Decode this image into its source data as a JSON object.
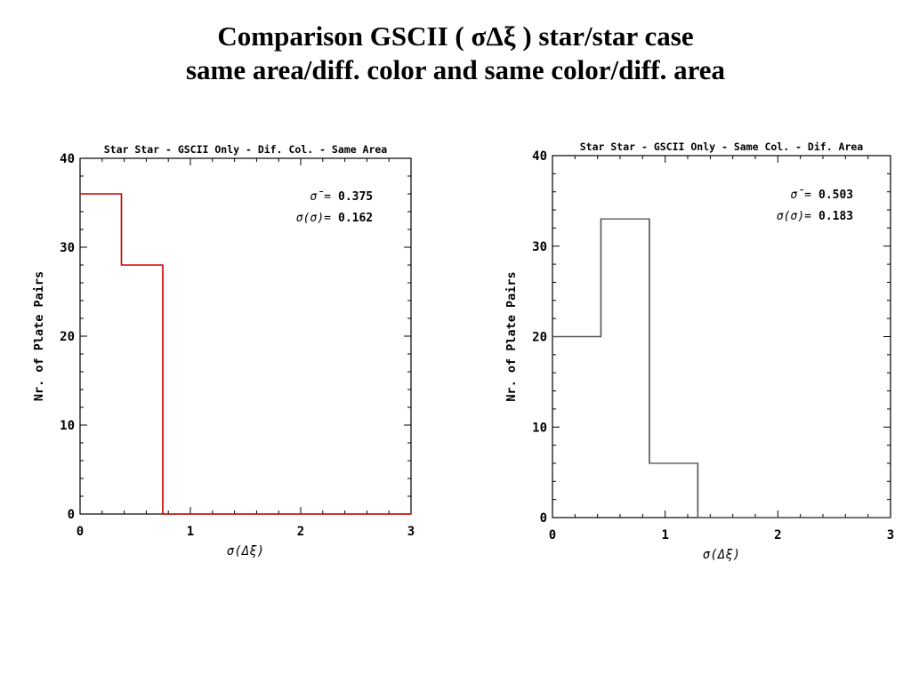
{
  "slide": {
    "title_line1": "Comparison GSCII ( σΔξ ) star/star case",
    "title_line2": "same area/diff. color and same color/diff. area"
  },
  "chart_data": [
    {
      "type": "histogram",
      "title": "Star Star - GSCII Only - Dif. Col. - Same Area",
      "xlabel": "σ(Δξ)",
      "ylabel": "Nr. of Plate Pairs",
      "xlim": [
        0,
        3
      ],
      "ylim": [
        0,
        40
      ],
      "xticks": [
        "0",
        "1",
        "2",
        "3"
      ],
      "yticks": [
        "0",
        "10",
        "20",
        "30",
        "40"
      ],
      "line_color": "#cc0000",
      "bins": [
        {
          "x0": 0.0,
          "x1": 0.375,
          "count": 36
        },
        {
          "x0": 0.375,
          "x1": 0.75,
          "count": 28
        },
        {
          "x0": 0.75,
          "x1": 3.0,
          "count": 0
        }
      ],
      "stats": [
        {
          "label": "σ̄=",
          "value": "0.375"
        },
        {
          "label": "σ(σ)=",
          "value": "0.162"
        }
      ]
    },
    {
      "type": "histogram",
      "title": "Star Star - GSCII Only - Same Col. - Dif. Area",
      "xlabel": "σ(Δξ)",
      "ylabel": "Nr. of Plate Pairs",
      "xlim": [
        0,
        3
      ],
      "ylim": [
        0,
        40
      ],
      "xticks": [
        "0",
        "1",
        "2",
        "3"
      ],
      "yticks": [
        "0",
        "10",
        "20",
        "30",
        "40"
      ],
      "line_color": "#555555",
      "bins": [
        {
          "x0": 0.0,
          "x1": 0.43,
          "count": 20
        },
        {
          "x0": 0.43,
          "x1": 0.86,
          "count": 33
        },
        {
          "x0": 0.86,
          "x1": 1.29,
          "count": 6
        },
        {
          "x0": 1.29,
          "x1": 3.0,
          "count": 0
        }
      ],
      "stats": [
        {
          "label": "σ̄=",
          "value": "0.503"
        },
        {
          "label": "σ(σ)=",
          "value": "0.183"
        }
      ]
    }
  ]
}
